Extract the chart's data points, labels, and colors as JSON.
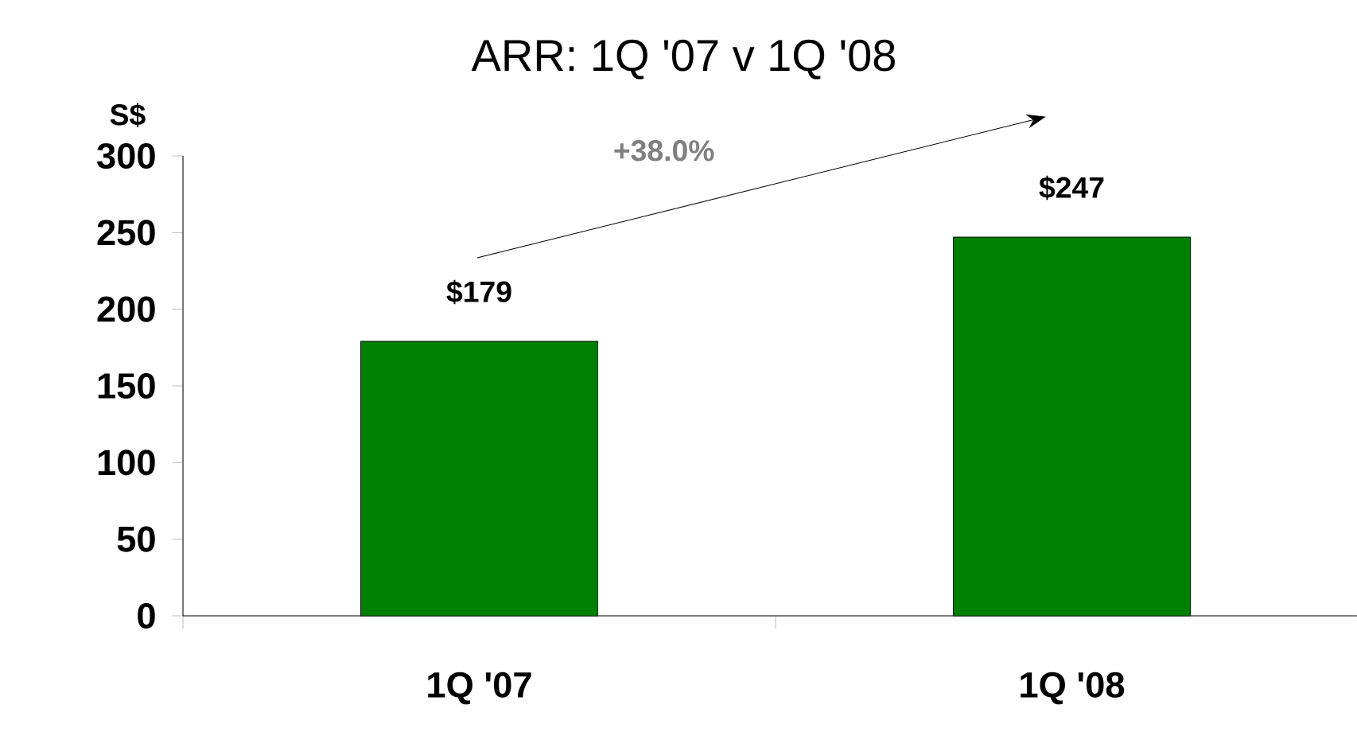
{
  "chart_data": {
    "type": "bar",
    "title": "ARR: 1Q '07 v 1Q '08",
    "ylabel": "S$",
    "categories": [
      "1Q '07",
      "1Q '08"
    ],
    "values": [
      179,
      247
    ],
    "color": "#008000",
    "value_labels": [
      "$179",
      "$247"
    ],
    "ylim": [
      0,
      300
    ],
    "yticks": [
      0,
      50,
      100,
      150,
      200,
      250,
      300
    ],
    "annotations": [
      "+38.0%"
    ]
  }
}
